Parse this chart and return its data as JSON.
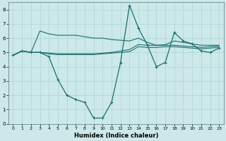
{
  "xlabel": "Humidex (Indice chaleur)",
  "xlim": [
    -0.5,
    23.5
  ],
  "ylim": [
    0,
    8.5
  ],
  "xticks": [
    0,
    1,
    2,
    3,
    4,
    5,
    6,
    7,
    8,
    9,
    10,
    11,
    12,
    13,
    14,
    15,
    16,
    17,
    18,
    19,
    20,
    21,
    22,
    23
  ],
  "yticks": [
    0,
    1,
    2,
    3,
    4,
    5,
    6,
    7,
    8
  ],
  "bg_color": "#cce8e8",
  "grid_color": "#aad4d4",
  "line_color": "#1a6e6e",
  "series": [
    {
      "x": [
        0,
        1,
        2,
        3,
        4,
        5,
        6,
        7,
        8,
        9,
        10,
        11,
        12,
        13,
        14,
        15,
        16,
        17,
        18,
        19,
        20,
        21,
        22,
        23
      ],
      "y": [
        4.8,
        5.1,
        5.0,
        5.0,
        4.9,
        4.85,
        4.85,
        4.85,
        4.85,
        4.85,
        4.9,
        4.95,
        5.0,
        5.05,
        5.4,
        5.35,
        5.35,
        5.4,
        5.4,
        5.35,
        5.3,
        5.25,
        5.3,
        5.35
      ],
      "marker": null,
      "lw": 0.8
    },
    {
      "x": [
        0,
        1,
        2,
        3,
        4,
        5,
        6,
        7,
        8,
        9,
        10,
        11,
        12,
        13,
        14,
        15,
        16,
        17,
        18,
        19,
        20,
        21,
        22,
        23
      ],
      "y": [
        4.8,
        5.1,
        5.0,
        5.0,
        4.95,
        4.9,
        4.9,
        4.9,
        4.9,
        4.9,
        4.95,
        5.0,
        5.1,
        5.2,
        5.55,
        5.5,
        5.5,
        5.5,
        5.5,
        5.45,
        5.4,
        5.35,
        5.4,
        5.45
      ],
      "marker": null,
      "lw": 0.8
    },
    {
      "x": [
        0,
        1,
        2,
        3,
        4,
        5,
        6,
        7,
        8,
        9,
        10,
        11,
        12,
        13,
        14,
        15,
        16,
        17,
        18,
        19,
        20,
        21,
        22,
        23
      ],
      "y": [
        4.8,
        5.1,
        5.0,
        6.5,
        6.3,
        6.2,
        6.2,
        6.2,
        6.1,
        6.0,
        6.0,
        5.9,
        5.85,
        5.8,
        6.0,
        5.7,
        5.5,
        5.55,
        5.8,
        5.7,
        5.6,
        5.5,
        5.5,
        5.5
      ],
      "marker": null,
      "lw": 0.8
    },
    {
      "x": [
        0,
        1,
        2,
        3,
        4,
        5,
        6,
        7,
        8,
        9,
        10,
        11,
        12,
        13,
        14,
        15,
        16,
        17,
        18,
        19,
        20,
        21,
        22,
        23
      ],
      "y": [
        4.8,
        5.1,
        5.0,
        5.0,
        4.7,
        3.1,
        2.0,
        1.7,
        1.5,
        0.4,
        0.4,
        1.5,
        4.3,
        8.3,
        6.7,
        5.5,
        4.0,
        4.3,
        6.4,
        5.8,
        5.6,
        5.1,
        5.0,
        5.3
      ],
      "marker": "+",
      "lw": 0.9
    }
  ]
}
